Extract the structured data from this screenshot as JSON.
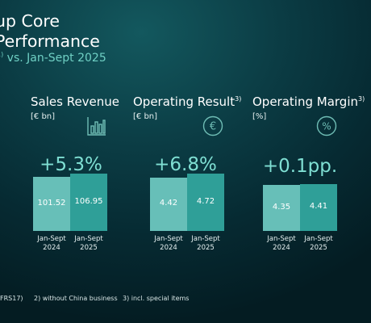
{
  "header": {
    "title_line1": "up Core",
    "title_line2": "Performance",
    "subtitle_prefix": "",
    "subtitle_sup": "1)",
    "subtitle_text": " vs. Jan-Sept 2025"
  },
  "chart_data": [
    {
      "type": "bar",
      "title": "Sales Revenue",
      "title_sup": "",
      "unit": "[€ bn]",
      "icon": "bar-chart-icon",
      "change": "+5.3%",
      "categories": [
        "Jan-Sept 2024",
        "Jan-Sept 2025"
      ],
      "values": [
        101.52,
        106.95
      ],
      "labels": [
        "101.52",
        "106.95"
      ]
    },
    {
      "type": "bar",
      "title": "Operating Result",
      "title_sup": "3)",
      "unit": "[€ bn]",
      "icon": "euro-icon",
      "change": "+6.8%",
      "categories": [
        "Jan-Sept 2024",
        "Jan-Sept 2025"
      ],
      "values": [
        4.42,
        4.72
      ],
      "labels": [
        "4.42",
        "4.72"
      ]
    },
    {
      "type": "bar",
      "title": "Operating Margin",
      "title_sup": "3)",
      "unit": "[%]",
      "icon": "percent-icon",
      "change": "+0.1pp.",
      "categories": [
        "Jan-Sept 2024",
        "Jan-Sept 2025"
      ],
      "values": [
        4.35,
        4.41
      ],
      "labels": [
        "4.35",
        "4.41"
      ]
    }
  ],
  "colors": {
    "bar_2024": "#67bfb8",
    "bar_2025": "#2f9f98",
    "accent": "#7fdfd3",
    "icon": "#6fbdb5"
  },
  "footnotes": {
    "note1": "FRS17)",
    "note2": "2) without China business",
    "note3": "3) incl. special items"
  }
}
